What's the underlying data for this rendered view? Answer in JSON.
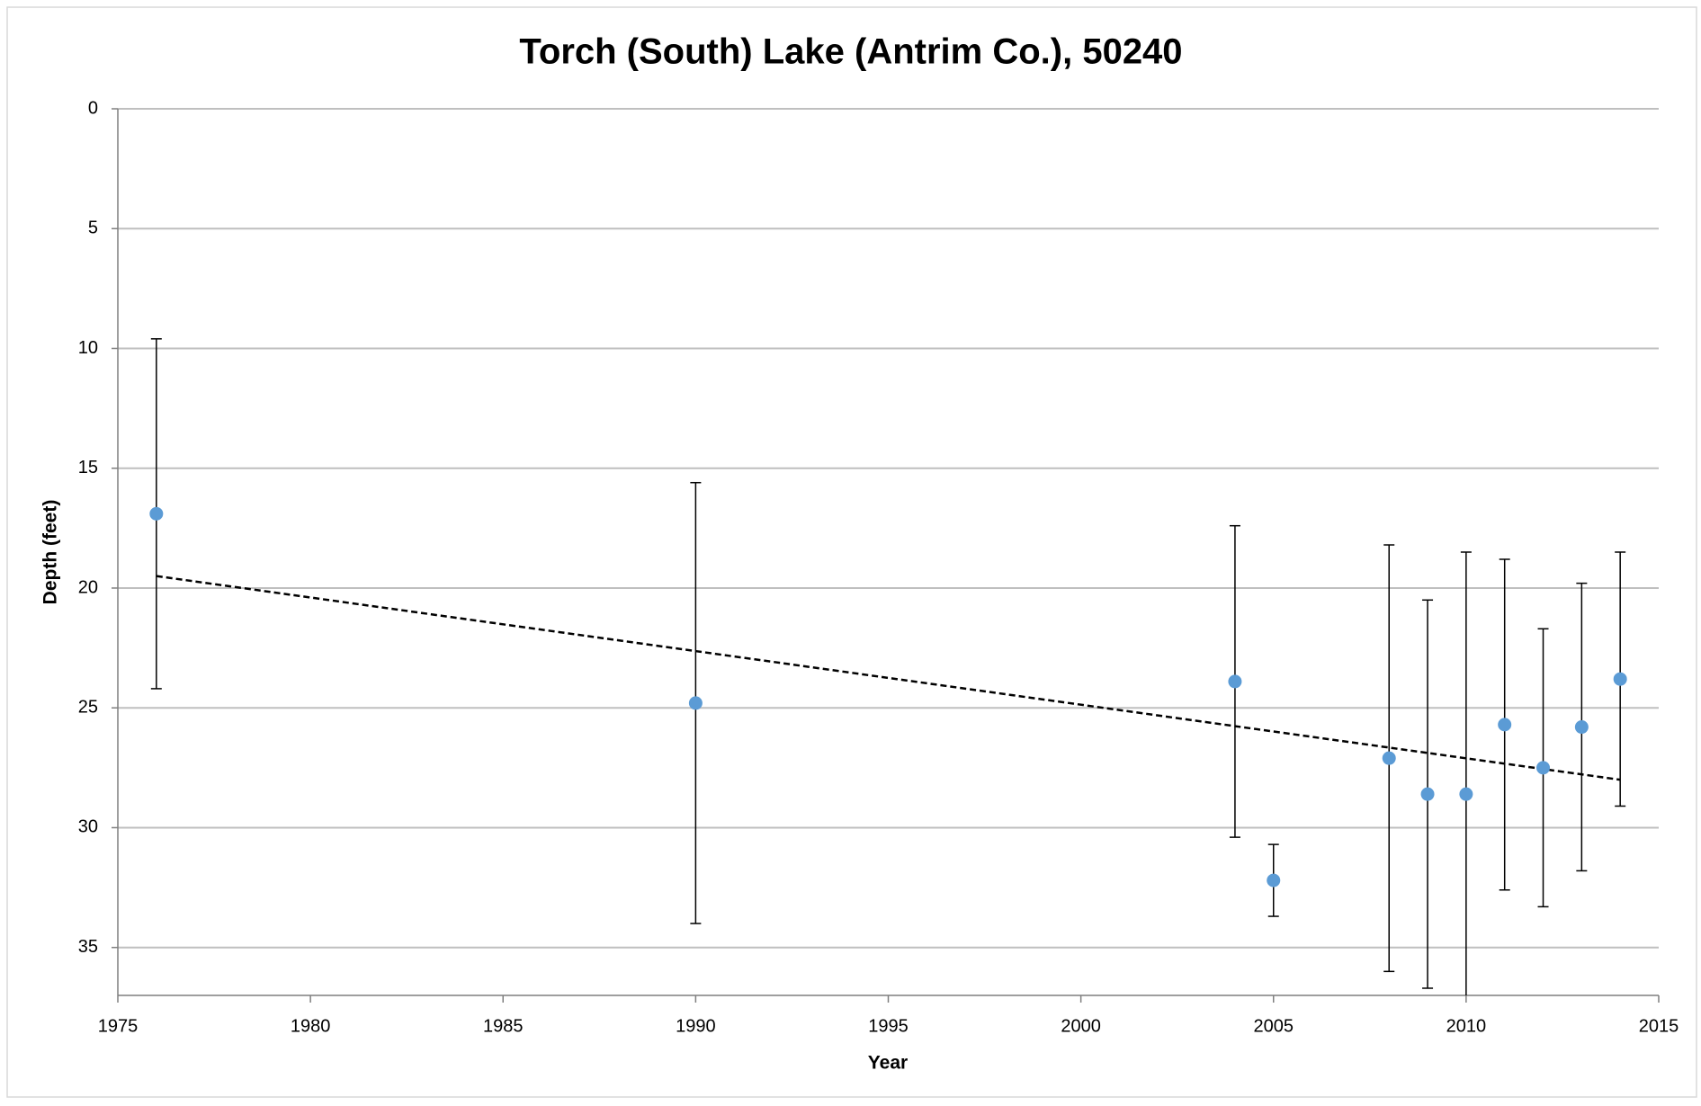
{
  "chart_data": {
    "type": "scatter",
    "title": "Torch (South) Lake (Antrim Co.), 50240",
    "x_label": "Year",
    "y_label": "Depth (feet)",
    "x": [
      1976,
      1990,
      2004,
      2005,
      2008,
      2009,
      2010,
      2011,
      2012,
      2013,
      2014
    ],
    "values": [
      16.9,
      24.8,
      23.9,
      32.2,
      27.1,
      28.6,
      28.6,
      25.7,
      27.5,
      25.8,
      23.8
    ],
    "errors": [
      7.3,
      9.2,
      6.5,
      1.5,
      8.9,
      8.1,
      10.1,
      6.9,
      5.8,
      6.0,
      5.3
    ],
    "color": "#5b9bd5",
    "trendline": {
      "x": [
        1976,
        2014
      ],
      "y": [
        19.5,
        28.0
      ]
    },
    "xlim": [
      1975,
      2015
    ],
    "xticks": [
      1975,
      1980,
      1985,
      1990,
      1995,
      2000,
      2005,
      2010,
      2015
    ],
    "ylim": [
      0,
      37
    ],
    "yticks": [
      0,
      5,
      10,
      15,
      20,
      25,
      30,
      35
    ],
    "y_inverted": true,
    "grid": true
  }
}
